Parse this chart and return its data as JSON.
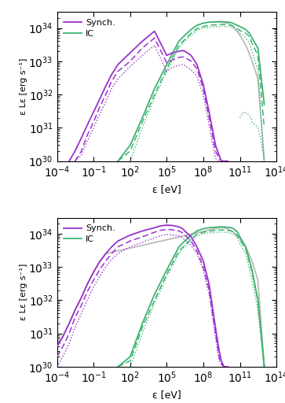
{
  "xlim": [
    0.0001,
    100000000000000.0
  ],
  "ylim": [
    1e+30,
    3e+34
  ],
  "xlabel": "ε [eV]",
  "ylabel": "ε Lε [erg s⁻¹]",
  "synch_color": "#9932CC",
  "ic_color": "#3CB371",
  "gray_color": "#BBBBBB",
  "top": {
    "synch_solid": {
      "x": [
        0.001,
        0.003,
        0.01,
        0.03,
        0.1,
        0.3,
        1,
        3,
        10,
        100,
        1000.0,
        10000.0,
        100000.0,
        300000.0,
        1000000.0,
        2000000.0,
        3000000.0,
        10000000.0,
        30000000.0,
        100000000.0,
        300000000.0,
        1000000000.0,
        2000000000.0,
        3000000000.0,
        5000000000.0,
        10000000000.0
      ],
      "y": [
        1e+30,
        2e+30,
        5e+30,
        1.2e+31,
        3e+31,
        7e+31,
        1.8e+32,
        4e+32,
        8e+32,
        1.8e+33,
        4e+33,
        8e+33,
        1.5e+33,
        1.8e+33,
        2e+33,
        2.1e+33,
        2e+33,
        1.5e+33,
        8e+32,
        2e+32,
        3e+31,
        3e+30,
        1.5e+30,
        1e+30,
        1e+30,
        1e+30
      ]
    },
    "synch_dashed": {
      "x": [
        0.003,
        0.01,
        0.03,
        0.1,
        0.3,
        1,
        3,
        10,
        100,
        1000.0,
        10000.0,
        100000.0,
        300000.0,
        1000000.0,
        2000000.0,
        3000000.0,
        10000000.0,
        30000000.0,
        100000000.0,
        300000000.0,
        1000000000.0,
        2000000000.0,
        3000000000.0,
        5000000000.0
      ],
      "y": [
        1e+30,
        2e+30,
        6e+30,
        1.5e+31,
        4e+31,
        1e+32,
        2.5e+32,
        5e+32,
        1e+33,
        2.5e+33,
        5e+33,
        9e+32,
        1.1e+33,
        1.3e+33,
        1.35e+33,
        1.3e+33,
        1e+33,
        6e+32,
        1.5e+32,
        2e+31,
        2e+30,
        1.2e+30,
        1e+30,
        1e+30
      ]
    },
    "synch_dotted": {
      "x": [
        0.003,
        0.01,
        0.03,
        0.1,
        0.3,
        1,
        3,
        10,
        100,
        1000.0,
        10000.0,
        100000.0,
        300000.0,
        1000000.0,
        2000000.0,
        3000000.0,
        10000000.0,
        30000000.0,
        100000000.0,
        300000000.0,
        1000000000.0,
        2000000000.0,
        3000000000.0
      ],
      "y": [
        1e+30,
        1.5e+30,
        4e+30,
        1e+31,
        2.5e+31,
        6e+31,
        1.5e+32,
        3e+32,
        7e+32,
        1.5e+33,
        3e+33,
        5e+32,
        6.5e+32,
        7.5e+32,
        8e+32,
        7.5e+32,
        5.5e+32,
        3.5e+32,
        1e+32,
        1.2e+31,
        1.2e+30,
        1e+30,
        1e+30
      ]
    },
    "ic_solid": {
      "x": [
        10,
        100,
        1000.0,
        10000.0,
        100000.0,
        1000000.0,
        3000000.0,
        10000000.0,
        30000000.0,
        100000000.0,
        300000000.0,
        1000000000.0,
        3000000000.0,
        10000000000.0,
        20000000000.0,
        30000000000.0,
        60000000000.0,
        100000000000.0,
        300000000000.0,
        600000000000.0,
        1000000000000.0,
        3000000000000.0,
        10000000000000.0
      ],
      "y": [
        1e+30,
        3e+30,
        2e+31,
        1.5e+32,
        8e+32,
        4e+33,
        6e+33,
        9e+33,
        1.2e+34,
        1.4e+34,
        1.5e+34,
        1.52e+34,
        1.55e+34,
        1.5e+34,
        1.45e+34,
        1.35e+34,
        1.2e+34,
        1.1e+34,
        9e+33,
        7e+33,
        5e+33,
        2.5e+33,
        5e+31
      ]
    },
    "ic_dashed": {
      "x": [
        10,
        100,
        1000.0,
        10000.0,
        100000.0,
        1000000.0,
        3000000.0,
        10000000.0,
        30000000.0,
        100000000.0,
        300000000.0,
        1000000000.0,
        3000000000.0,
        10000000000.0,
        20000000000.0,
        30000000000.0,
        60000000000.0,
        100000000000.0,
        300000000000.0,
        600000000000.0,
        1000000000000.0,
        3000000000000.0,
        10000000000000.0
      ],
      "y": [
        1e+30,
        2e+30,
        1.5e+31,
        1e+32,
        6e+32,
        3e+33,
        4.5e+33,
        7e+33,
        9.5e+33,
        1.1e+34,
        1.2e+34,
        1.25e+34,
        1.28e+34,
        1.25e+34,
        1.2e+34,
        1.1e+34,
        9.5e+33,
        8.5e+33,
        7e+33,
        5.5e+33,
        3.5e+33,
        1.5e+33,
        1e+31
      ]
    },
    "ic_dotted": {
      "x": [
        100,
        1000.0,
        10000.0,
        100000.0,
        1000000.0,
        3000000.0,
        10000000.0,
        30000000.0,
        100000000.0,
        300000000.0,
        1000000000.0,
        3000000000.0,
        10000000000.0,
        20000000000.0,
        30000000000.0,
        60000000000.0,
        100000000000.0,
        300000000000.0,
        600000000000.0,
        1000000000000.0,
        3000000000000.0,
        10000000000000.0
      ],
      "y": [
        1e+30,
        1e+31,
        8e+31,
        5e+32,
        2.5e+33,
        4e+33,
        6e+33,
        8.5e+33,
        1e+34,
        1.05e+34,
        1.1e+34,
        1.12e+34,
        1.1e+34,
        1.05e+34,
        9.5e+33,
        8e+33,
        7e+33,
        5e+33,
        3.5e+33,
        2e+33,
        5e+32,
        1e+30
      ]
    },
    "ic_solid_bump": {
      "x": [
        30000000000.0,
        60000000000.0,
        100000000000.0,
        200000000000.0,
        300000000000.0,
        500000000000.0,
        800000000000.0,
        1000000000000.0,
        2000000000000.0,
        3000000000000.0,
        5000000000000.0,
        10000000000000.0
      ],
      "y": [
        1.35e+34,
        1.2e+34,
        1.1e+34,
        9.5e+33,
        9e+33,
        8.5e+33,
        8e+33,
        7.5e+33,
        6e+33,
        4.5e+33,
        3e+33,
        5e+31
      ]
    },
    "ic_dotted_high": {
      "x": [
        100000000000.0,
        200000000000.0,
        300000000000.0,
        500000000000.0,
        800000000000.0,
        1000000000000.0,
        2000000000000.0,
        3000000000000.0,
        5000000000000.0,
        10000000000000.0
      ],
      "y": [
        2e+31,
        3e+31,
        2.8e+31,
        2.5e+31,
        2e+31,
        1.5e+31,
        1.2e+31,
        1e+31,
        5e+30,
        1e+30
      ]
    },
    "gray_solid": {
      "x": [
        1000000000.0,
        3000000000.0,
        10000000000.0,
        30000000000.0,
        60000000000.0,
        100000000000.0,
        200000000000.0,
        300000000000.0,
        500000000000.0,
        1000000000000.0,
        3000000000000.0,
        10000000000000.0
      ],
      "y": [
        1.55e+34,
        1.5e+34,
        1.4e+34,
        1.1e+34,
        8e+33,
        6e+33,
        4e+33,
        3e+33,
        2e+33,
        1e+33,
        3e+32,
        1e+30
      ]
    }
  },
  "bottom": {
    "synch_solid": {
      "x": [
        0.0001,
        0.0003,
        0.001,
        0.003,
        0.01,
        0.03,
        0.1,
        0.3,
        1,
        3,
        10,
        100,
        1000.0,
        10000.0,
        30000.0,
        100000.0,
        300000.0,
        1000000.0,
        2000000.0,
        3000000.0,
        10000000.0,
        30000000.0,
        100000000.0,
        300000000.0,
        1000000000.0,
        2000000000.0,
        3000000000.0,
        5000000000.0,
        10000000000.0
      ],
      "y": [
        4e+30,
        8e+30,
        2e+31,
        5e+31,
        1.2e+32,
        3e+32,
        7e+32,
        1.4e+33,
        2.5e+33,
        4e+33,
        6e+33,
        9e+33,
        1.2e+34,
        1.5e+34,
        1.7e+34,
        1.8e+34,
        1.75e+34,
        1.6e+34,
        1.4e+34,
        1.2e+34,
        8e+33,
        4e+33,
        1.5e+33,
        3e+32,
        1.5e+31,
        3e+30,
        1.5e+30,
        1e+30,
        1e+30
      ]
    },
    "synch_dashed": {
      "x": [
        0.0001,
        0.0003,
        0.001,
        0.003,
        0.01,
        0.03,
        0.1,
        0.3,
        1,
        3,
        10,
        100,
        1000.0,
        10000.0,
        30000.0,
        100000.0,
        300000.0,
        1000000.0,
        2000000.0,
        3000000.0,
        10000000.0,
        30000000.0,
        100000000.0,
        300000000.0,
        1000000000.0,
        2000000000.0,
        3000000000.0,
        5000000000.0,
        10000000000.0
      ],
      "y": [
        2e+30,
        4e+30,
        1e+31,
        3e+31,
        7e+31,
        1.8e+32,
        4e+32,
        8e+32,
        1.5e+33,
        2.5e+33,
        4e+33,
        6e+33,
        8e+33,
        1.1e+34,
        1.25e+34,
        1.35e+34,
        1.3e+34,
        1.2e+34,
        1.05e+34,
        9e+33,
        6e+33,
        3e+33,
        1e+33,
        2e+32,
        1e+31,
        2e+30,
        1.2e+30,
        1e+30,
        1e+30
      ]
    },
    "synch_dotted": {
      "x": [
        0.0001,
        0.0003,
        0.001,
        0.003,
        0.01,
        0.03,
        0.1,
        0.3,
        1,
        3,
        10,
        100,
        1000.0,
        10000.0,
        30000.0,
        100000.0,
        300000.0,
        1000000.0,
        2000000.0,
        3000000.0,
        10000000.0,
        30000000.0,
        100000000.0,
        300000000.0,
        1000000000.0,
        2000000000.0,
        3000000000.0,
        5000000000.0,
        10000000000.0
      ],
      "y": [
        1e+30,
        2e+30,
        5e+30,
        1.5e+31,
        4e+31,
        1e+32,
        2.5e+32,
        5e+32,
        1e+33,
        1.7e+33,
        2.5e+33,
        4e+33,
        5.5e+33,
        7.5e+33,
        8.5e+33,
        9.5e+33,
        9e+33,
        8.5e+33,
        7.5e+33,
        6.5e+33,
        4.5e+33,
        2.5e+33,
        8e+32,
        1.5e+32,
        8e+30,
        1.5e+30,
        1.2e+30,
        1e+30,
        1e+30
      ]
    },
    "ic_solid": {
      "x": [
        10,
        100,
        1000.0,
        10000.0,
        100000.0,
        1000000.0,
        3000000.0,
        10000000.0,
        30000000.0,
        100000000.0,
        300000000.0,
        1000000000.0,
        3000000000.0,
        10000000000.0,
        20000000000.0,
        30000000000.0,
        60000000000.0,
        100000000000.0,
        300000000000.0,
        1000000000000.0,
        3000000000000.0,
        10000000000000.0
      ],
      "y": [
        1e+30,
        2e+30,
        2e+31,
        1.5e+32,
        8e+32,
        4e+33,
        6e+33,
        9e+33,
        1.2e+34,
        1.4e+34,
        1.5e+34,
        1.55e+34,
        1.6e+34,
        1.55e+34,
        1.5e+34,
        1.4e+34,
        1.15e+34,
        8e+33,
        4e+33,
        8e+32,
        1e+32,
        1e+30
      ]
    },
    "ic_dashed": {
      "x": [
        10,
        100,
        1000.0,
        10000.0,
        100000.0,
        1000000.0,
        3000000.0,
        10000000.0,
        30000000.0,
        100000000.0,
        300000000.0,
        1000000000.0,
        3000000000.0,
        10000000000.0,
        20000000000.0,
        30000000000.0,
        60000000000.0,
        100000000000.0,
        300000000000.0,
        1000000000000.0,
        3000000000000.0,
        10000000000000.0
      ],
      "y": [
        1e+30,
        1.5e+30,
        1.5e+31,
        1e+32,
        6e+32,
        3e+33,
        4.5e+33,
        7e+33,
        9.5e+33,
        1.1e+34,
        1.2e+34,
        1.25e+34,
        1.3e+34,
        1.25e+34,
        1.2e+34,
        1.1e+34,
        9e+33,
        6.5e+33,
        3.5e+33,
        7e+32,
        1e+32,
        1e+30
      ]
    },
    "ic_dotted": {
      "x": [
        100,
        1000.0,
        10000.0,
        100000.0,
        1000000.0,
        3000000.0,
        10000000.0,
        30000000.0,
        100000000.0,
        300000000.0,
        1000000000.0,
        3000000000.0,
        10000000000.0,
        20000000000.0,
        30000000000.0,
        60000000000.0,
        100000000000.0,
        300000000000.0,
        1000000000000.0,
        3000000000000.0,
        10000000000000.0
      ],
      "y": [
        1e+30,
        1e+31,
        8e+31,
        5e+32,
        2.5e+33,
        4e+33,
        6e+33,
        8.5e+33,
        1e+34,
        1.05e+34,
        1.1e+34,
        1.12e+34,
        1.08e+34,
        1.02e+34,
        9.5e+33,
        7.5e+33,
        5e+33,
        2.5e+33,
        4e+32,
        5e+31,
        1e+30
      ]
    },
    "gray_solid": {
      "x": [
        0.0001,
        0.0003,
        0.001,
        0.003,
        0.01,
        0.03,
        0.1,
        0.3,
        1,
        3000000000.0,
        10000000000.0,
        30000000000.0,
        100000000000.0,
        300000000000.0,
        1000000000000.0,
        3000000000000.0,
        10000000000000.0
      ],
      "y": [
        4e+30,
        8e+30,
        2e+31,
        5e+31,
        1.2e+32,
        3e+32,
        7e+32,
        1.4e+33,
        2.5e+33,
        1.55e+34,
        1.4e+34,
        1.1e+34,
        7e+33,
        4e+33,
        1.5e+33,
        4e+32,
        1e+30
      ]
    }
  }
}
